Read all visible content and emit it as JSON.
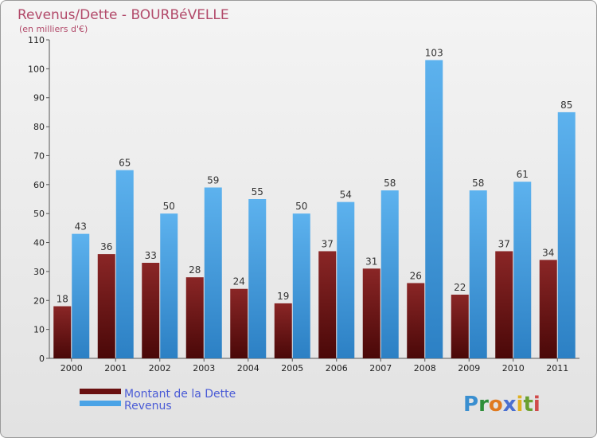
{
  "chart_data": {
    "type": "bar",
    "title": "Revenus/Dette - BOURBéVELLE",
    "subtitle": "(en milliers d'€)",
    "categories": [
      "2000",
      "2001",
      "2002",
      "2003",
      "2004",
      "2005",
      "2006",
      "2007",
      "2008",
      "2009",
      "2010",
      "2011"
    ],
    "series": [
      {
        "name": "Montant de la Dette",
        "color": "#7a1a1a",
        "values": [
          18,
          36,
          33,
          28,
          24,
          19,
          37,
          31,
          26,
          22,
          37,
          34
        ]
      },
      {
        "name": "Revenus",
        "color": "#4aa3e6",
        "values": [
          43,
          65,
          50,
          59,
          55,
          50,
          54,
          58,
          103,
          58,
          61,
          85
        ]
      }
    ],
    "ylim": [
      0,
      110
    ],
    "yticks": [
      0,
      10,
      20,
      30,
      40,
      50,
      60,
      70,
      80,
      90,
      100,
      110
    ],
    "grid": false,
    "xlabel": "",
    "ylabel": "",
    "legend_position": "bottom-left"
  },
  "logo": {
    "letters": [
      "P",
      "r",
      "o",
      "x",
      "i",
      "t",
      "i"
    ],
    "colors": [
      "#3a8fd0",
      "#2f8f3a",
      "#e07a20",
      "#4a6fd0",
      "#e0b020",
      "#6aa030",
      "#d04a4a"
    ]
  }
}
